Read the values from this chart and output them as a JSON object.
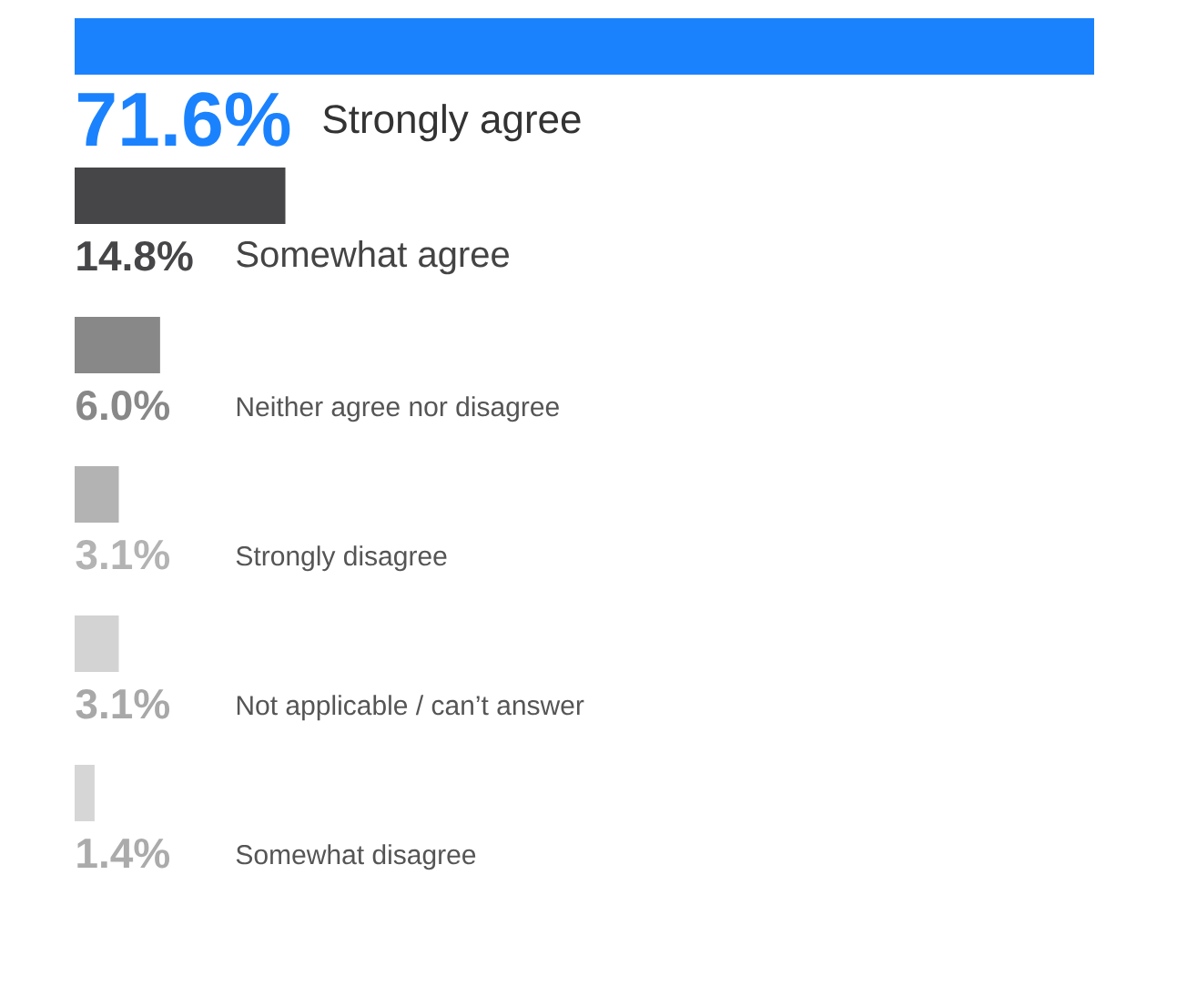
{
  "chart_data": {
    "type": "bar",
    "orientation": "horizontal",
    "categories": [
      "Strongly agree",
      "Somewhat agree",
      "Neither agree nor disagree",
      "Strongly disagree",
      "Not applicable / can’t answer",
      "Somewhat disagree"
    ],
    "values": [
      71.6,
      14.8,
      6.0,
      3.1,
      3.1,
      1.4
    ],
    "value_labels": [
      "71.6%",
      "14.8%",
      "6.0%",
      "3.1%",
      "3.1%",
      "1.4%"
    ],
    "colors": [
      "#1b82fe",
      "#464648",
      "#888888",
      "#b3b3b3",
      "#d3d3d3",
      "#d6d6d6"
    ]
  }
}
